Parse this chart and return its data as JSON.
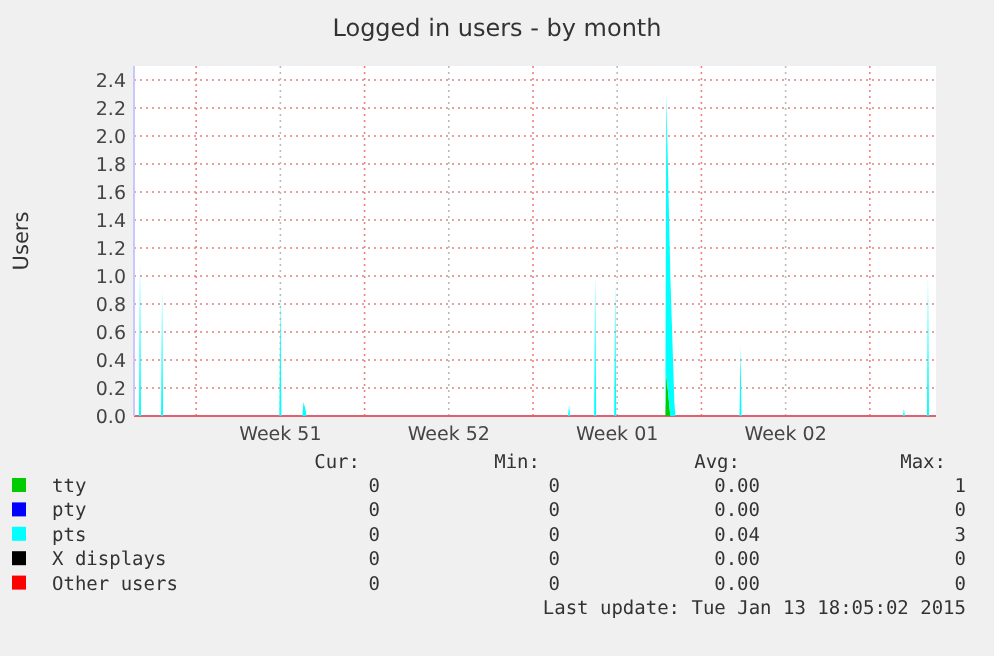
{
  "chart_data": {
    "type": "area",
    "stacked": true,
    "title": "Logged in users - by month",
    "ylabel": "Users",
    "x": [
      "2014-12-11T10:00",
      "2014-12-11T15:00",
      "2014-12-11T16:00",
      "2014-12-11T17:00",
      "2014-12-12T13:00",
      "2014-12-12T14:00",
      "2014-12-12T15:00",
      "2014-12-17T11:00",
      "2014-12-17T12:00",
      "2014-12-17T13:00",
      "2014-12-18T10:00",
      "2014-12-18T11:00",
      "2014-12-18T13:00",
      "2014-12-18T14:00",
      "2014-12-29T11:00",
      "2014-12-29T12:00",
      "2014-12-29T13:00",
      "2014-12-30T13:00",
      "2014-12-30T14:00",
      "2014-12-30T15:00",
      "2014-12-31T09:00",
      "2014-12-31T10:00",
      "2014-12-31T11:00",
      "2015-01-02T12:00",
      "2015-01-02T13:00",
      "2015-01-02T17:00",
      "2015-01-02T21:00",
      "2015-01-02T22:00",
      "2015-01-05T14:00",
      "2015-01-05T15:00",
      "2015-01-05T16:00",
      "2015-01-12T09:00",
      "2015-01-12T10:00",
      "2015-01-12T11:00",
      "2015-01-13T09:00",
      "2015-01-13T10:00",
      "2015-01-13T11:00",
      "2015-01-13T18:00"
    ],
    "series": [
      {
        "name": "tty",
        "color": "#00cc00",
        "values": [
          0,
          0,
          0,
          0,
          0,
          0,
          0,
          0,
          0,
          0,
          0,
          0,
          0,
          0,
          0,
          0,
          0,
          0,
          0,
          0,
          0,
          0,
          0,
          0,
          0.3,
          0,
          0,
          0,
          0,
          0,
          0,
          0,
          0,
          0,
          0,
          0,
          0,
          0
        ]
      },
      {
        "name": "pty",
        "color": "#0000ff",
        "values": [
          null,
          null,
          null,
          null,
          null,
          null,
          null,
          null,
          null,
          null,
          null,
          null,
          null,
          null,
          null,
          null,
          null,
          null,
          null,
          null,
          null,
          null,
          null,
          null,
          null,
          null,
          null,
          null,
          null,
          null,
          null,
          null,
          null,
          null,
          null,
          null,
          null,
          null
        ]
      },
      {
        "name": "pts",
        "color": "#00ffff",
        "values": [
          0,
          0,
          1.1,
          0,
          0,
          0.9,
          0,
          0,
          0.9,
          0,
          0,
          0.1,
          0.05,
          0,
          0,
          0.08,
          0,
          0,
          1.0,
          0,
          0,
          0.95,
          0,
          0,
          2.0,
          1.0,
          0.1,
          0,
          0,
          0.5,
          0,
          0,
          0.05,
          0,
          0,
          1.0,
          0,
          0
        ]
      },
      {
        "name": "X displays",
        "color": "#000000",
        "values": [
          null,
          null,
          null,
          null,
          null,
          null,
          null,
          null,
          null,
          null,
          null,
          null,
          null,
          null,
          null,
          null,
          null,
          null,
          null,
          null,
          null,
          null,
          null,
          null,
          null,
          null,
          null,
          null,
          null,
          null,
          null,
          null,
          null,
          null,
          null,
          null,
          null,
          null
        ]
      },
      {
        "name": "Other users",
        "color": "#ff0000",
        "values": [
          null,
          null,
          null,
          null,
          null,
          null,
          null,
          null,
          null,
          null,
          null,
          null,
          null,
          null,
          null,
          null,
          null,
          null,
          null,
          null,
          null,
          null,
          null,
          null,
          null,
          null,
          null,
          null,
          null,
          null,
          null,
          null,
          null,
          null,
          null,
          null,
          null,
          null
        ]
      }
    ],
    "xlim": [
      "2014-12-11T10:00",
      "2015-01-13T18:00"
    ],
    "xticks": [
      {
        "value": "2014-12-14T00:00",
        "label": null
      },
      {
        "value": "2014-12-17T12:00",
        "label": "Week 51"
      },
      {
        "value": "2014-12-21T00:00",
        "label": null
      },
      {
        "value": "2014-12-24T12:00",
        "label": "Week 52"
      },
      {
        "value": "2014-12-28T00:00",
        "label": null
      },
      {
        "value": "2014-12-31T12:00",
        "label": "Week 01"
      },
      {
        "value": "2015-01-04T00:00",
        "label": null
      },
      {
        "value": "2015-01-07T12:00",
        "label": "Week 02"
      },
      {
        "value": "2015-01-11T00:00",
        "label": null
      }
    ],
    "ylim": [
      0,
      2.5
    ],
    "yticks": [
      {
        "value": 0,
        "label": "0.0"
      },
      {
        "value": 0.2,
        "label": "0.2"
      },
      {
        "value": 0.4,
        "label": "0.4"
      },
      {
        "value": 0.6,
        "label": "0.6"
      },
      {
        "value": 0.8,
        "label": "0.8"
      },
      {
        "value": 1,
        "label": "1.0"
      },
      {
        "value": 1.2,
        "label": "1.2"
      },
      {
        "value": 1.4,
        "label": "1.4"
      },
      {
        "value": 1.6,
        "label": "1.6"
      },
      {
        "value": 1.8,
        "label": "1.8"
      },
      {
        "value": 2,
        "label": "2.0"
      },
      {
        "value": 2.2,
        "label": "2.2"
      },
      {
        "value": 2.4,
        "label": "2.4"
      }
    ],
    "grid": true,
    "legend": "bottom",
    "annotations": [
      "Cur:",
      "Min:",
      "Avg:",
      "Max:",
      "0",
      "0",
      "0.00",
      "1",
      "0",
      "0",
      "0.00",
      "0",
      "0",
      "0",
      "0.04",
      "3",
      "0",
      "0",
      "0.00",
      "0",
      "0",
      "0",
      "0.00",
      "0",
      "Last update: Tue Jan 13 18:05:02 2015"
    ]
  }
}
